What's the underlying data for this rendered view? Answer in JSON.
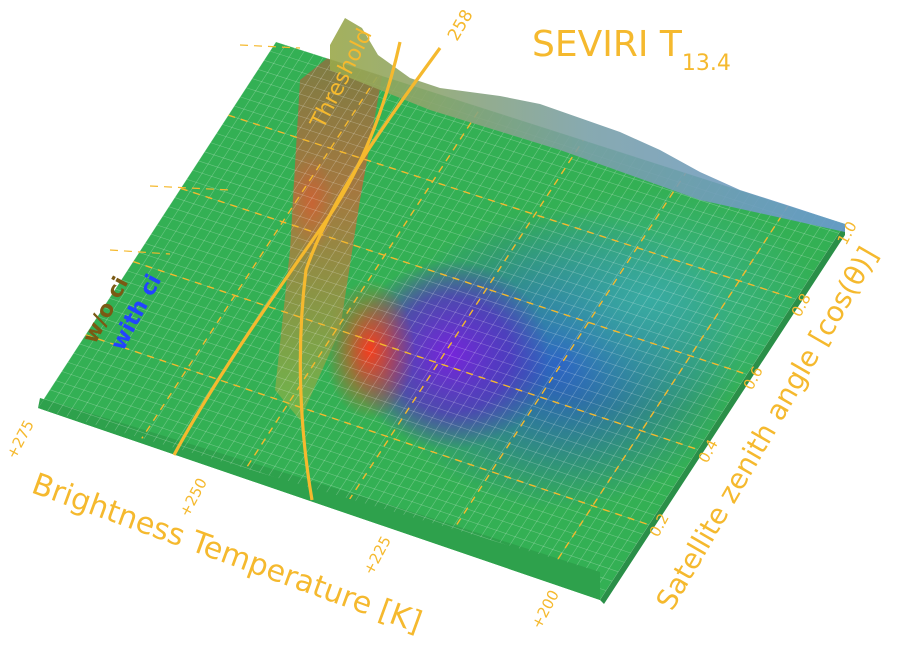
{
  "chart_data": {
    "type": "surface",
    "title_main": "SEVIRI T",
    "title_sub": "13.4",
    "xlabel": "Brightness Temperature [K]",
    "ylabel": "Satellite zenith angle [cos(θ)]",
    "x_ticks": [
      "+275",
      "+250",
      "+225",
      "+200"
    ],
    "y_ticks": [
      "0.2",
      "0.4",
      "0.6",
      "0.8",
      "1.0"
    ],
    "threshold_label": "Threshold",
    "threshold_value_label": "258",
    "legend": [
      {
        "label": "w/o ci",
        "color": "#7a5a14"
      },
      {
        "label": "with ci",
        "color": "#2244ff"
      }
    ],
    "annotation_color": "#f5b92e",
    "surface_color_base": "#33b054"
  }
}
